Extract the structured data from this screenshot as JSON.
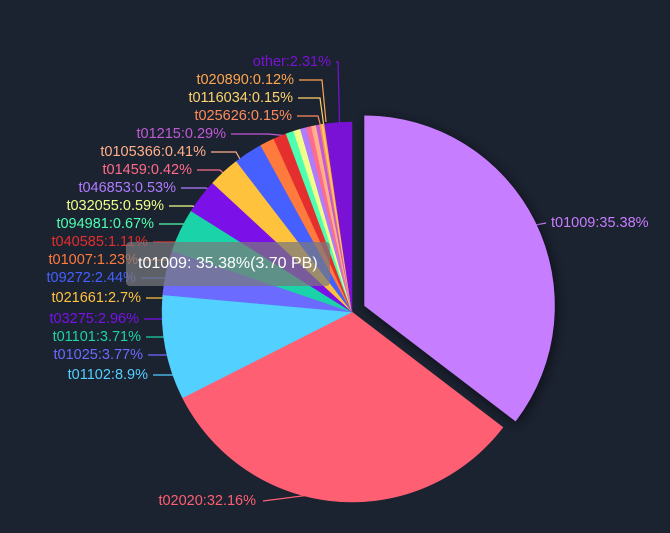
{
  "chart_data": {
    "type": "pie",
    "unit": "PB",
    "series": [
      {
        "name": "t01009",
        "label": "t01009:35.38%",
        "percent": 35.38,
        "color": "#c77dff"
      },
      {
        "name": "t02020",
        "label": "t02020:32.16%",
        "percent": 32.16,
        "color": "#ff5f73"
      },
      {
        "name": "t01102",
        "label": "t01102:8.9%",
        "percent": 8.9,
        "color": "#52d0ff"
      },
      {
        "name": "t01025",
        "label": "t01025:3.77%",
        "percent": 3.77,
        "color": "#6b6bff"
      },
      {
        "name": "t01101",
        "label": "t01101:3.71%",
        "percent": 3.71,
        "color": "#1ad3a8"
      },
      {
        "name": "t03275",
        "label": "t03275:2.96%",
        "percent": 2.96,
        "color": "#7b11e8"
      },
      {
        "name": "t021661",
        "label": "t021661:2.7%",
        "percent": 2.7,
        "color": "#ffc23c"
      },
      {
        "name": "t09272",
        "label": "t09272:2.44%",
        "percent": 2.44,
        "color": "#4660ff"
      },
      {
        "name": "t01007",
        "label": "t01007:1.23%",
        "percent": 1.23,
        "color": "#ff7a3d"
      },
      {
        "name": "t040585",
        "label": "t040585:1.11%",
        "percent": 1.11,
        "color": "#e52e2e"
      },
      {
        "name": "t094981",
        "label": "t094981:0.67%",
        "percent": 0.67,
        "color": "#4dffb0"
      },
      {
        "name": "t032055",
        "label": "t032055:0.59%",
        "percent": 0.59,
        "color": "#f0ff8a"
      },
      {
        "name": "t046853",
        "label": "t046853:0.53%",
        "percent": 0.53,
        "color": "#b07cff"
      },
      {
        "name": "t01459",
        "label": "t01459:0.42%",
        "percent": 0.42,
        "color": "#ff6b8a"
      },
      {
        "name": "t0105366",
        "label": "t0105366:0.41%",
        "percent": 0.41,
        "color": "#ffb08a"
      },
      {
        "name": "t01215",
        "label": "t01215:0.29%",
        "percent": 0.29,
        "color": "#c15ad6"
      },
      {
        "name": "t025626",
        "label": "t025626:0.15%",
        "percent": 0.15,
        "color": "#ff8c5a"
      },
      {
        "name": "t0116034",
        "label": "t0116034:0.15%",
        "percent": 0.15,
        "color": "#ffd36b"
      },
      {
        "name": "t020890",
        "label": "t020890:0.12%",
        "percent": 0.12,
        "color": "#ffa54d"
      },
      {
        "name": "other",
        "label": "other:2.31%",
        "percent": 2.31,
        "color": "#7a12d6"
      }
    ],
    "emphasized": "t01009"
  },
  "tooltip": {
    "text": "t01009: 35.38%(3.70 PB)"
  }
}
